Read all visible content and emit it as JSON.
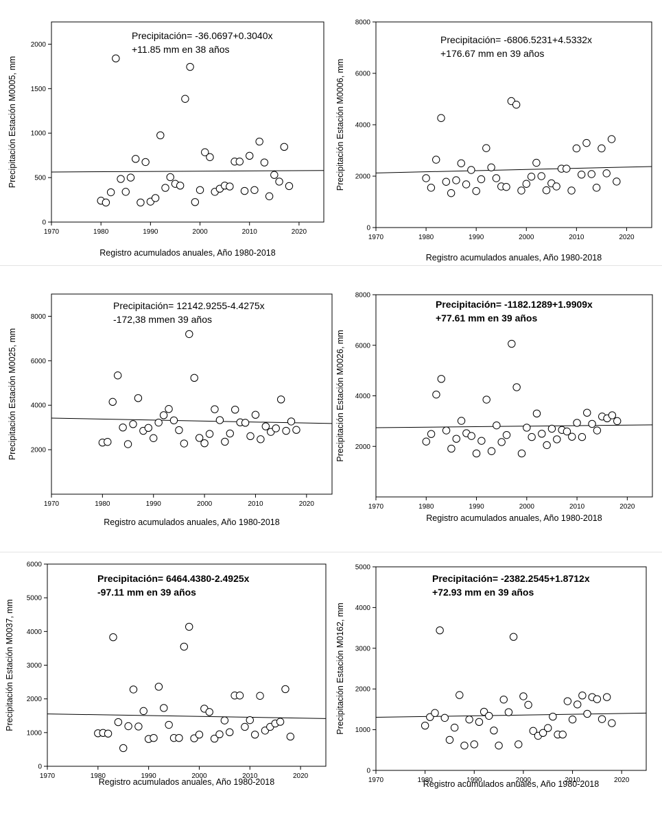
{
  "chart_data": [
    {
      "type": "scatter",
      "equation_line1": "Precipitación= -36.0697+0.3040x",
      "equation_line2": "+11.85 mm en 38 años",
      "bold": false,
      "ylabel": "Precipitación Estación M0005, mm",
      "xlabel": "Registro acumulados anuales, Año 1980-2018",
      "xlim": [
        1970,
        2025
      ],
      "ylim": [
        0,
        2250
      ],
      "xticks": [
        1970,
        1980,
        1990,
        2000,
        2010,
        2020
      ],
      "yticks": [
        0,
        500,
        1000,
        1500,
        2000
      ],
      "trend": {
        "intercept": -36.0697,
        "slope": 0.304
      },
      "x": [
        1980,
        1981,
        1982,
        1983,
        1984,
        1985,
        1986,
        1987,
        1988,
        1989,
        1990,
        1991,
        1992,
        1993,
        1994,
        1995,
        1996,
        1997,
        1998,
        1999,
        2000,
        2001,
        2002,
        2003,
        2004,
        2005,
        2006,
        2007,
        2008,
        2009,
        2010,
        2011,
        2012,
        2013,
        2014,
        2015,
        2016,
        2017,
        2018
      ],
      "y": [
        240,
        220,
        335,
        1840,
        485,
        340,
        500,
        710,
        220,
        675,
        230,
        270,
        975,
        385,
        505,
        430,
        410,
        1385,
        1745,
        225,
        360,
        785,
        730,
        340,
        375,
        410,
        400,
        680,
        680,
        350,
        745,
        360,
        905,
        670,
        290,
        530,
        455,
        845,
        405
      ]
    },
    {
      "type": "scatter",
      "equation_line1": "Precipitación= -6806.5231+4.5332x",
      "equation_line2": "+176.67 mm en 39 años",
      "bold": false,
      "ylabel": "Precipitación Estación M0006, mm",
      "xlabel": "Registro acumulados anuales, Año 1980-2018",
      "xlim": [
        1970,
        2025
      ],
      "ylim": [
        0,
        8000
      ],
      "xticks": [
        1970,
        1980,
        1990,
        2000,
        2010,
        2020
      ],
      "yticks": [
        0,
        2000,
        4000,
        6000,
        8000
      ],
      "trend": {
        "intercept": -6806.5231,
        "slope": 4.5332
      },
      "x": [
        1980,
        1981,
        1982,
        1983,
        1984,
        1985,
        1986,
        1987,
        1988,
        1989,
        1990,
        1991,
        1992,
        1993,
        1994,
        1995,
        1996,
        1997,
        1998,
        1999,
        2000,
        2001,
        2002,
        2003,
        2004,
        2005,
        2006,
        2007,
        2008,
        2009,
        2010,
        2011,
        2012,
        2013,
        2014,
        2015,
        2016,
        2017,
        2018
      ],
      "y": [
        1920,
        1550,
        2640,
        4260,
        1780,
        1340,
        1840,
        2500,
        1680,
        2240,
        1420,
        1880,
        3090,
        2340,
        1920,
        1600,
        1580,
        4920,
        4780,
        1440,
        1700,
        1980,
        2520,
        2000,
        1450,
        1720,
        1600,
        2290,
        2290,
        1440,
        3080,
        2060,
        3290,
        2080,
        1550,
        3080,
        2110,
        3440,
        1790
      ]
    },
    {
      "type": "scatter",
      "equation_line1": "Precipitación= 12142.9255-4.4275x",
      "equation_line2": "-172,38 mmen 39 años",
      "bold": false,
      "ylabel": "Precipitación Estación M0025, mm",
      "xlabel": "Registro acumulados anuales, Año 1980-2018",
      "xlim": [
        1970,
        2025
      ],
      "ylim": [
        0,
        9000
      ],
      "xticks": [
        1970,
        1980,
        1990,
        2000,
        2010,
        2020
      ],
      "yticks": [
        2000,
        4000,
        6000,
        8000
      ],
      "trend": {
        "intercept": 12142.9255,
        "slope": -4.4275
      },
      "x": [
        1980,
        1981,
        1982,
        1983,
        1984,
        1985,
        1986,
        1987,
        1988,
        1989,
        1990,
        1991,
        1992,
        1993,
        1994,
        1995,
        1996,
        1997,
        1998,
        1999,
        2000,
        2001,
        2002,
        2003,
        2004,
        2005,
        2006,
        2007,
        2008,
        2009,
        2010,
        2011,
        2012,
        2013,
        2014,
        2015,
        2016,
        2017,
        2018
      ],
      "y": [
        2320,
        2350,
        4150,
        5340,
        3000,
        2250,
        3150,
        4320,
        2850,
        2980,
        2520,
        3220,
        3550,
        3830,
        3320,
        2880,
        2280,
        7200,
        5230,
        2530,
        2290,
        2710,
        3820,
        3330,
        2360,
        2730,
        3800,
        3230,
        3210,
        2610,
        3570,
        2470,
        3050,
        2800,
        2960,
        4260,
        2850,
        3270,
        2890
      ]
    },
    {
      "type": "scatter",
      "equation_line1": "Precipitación= -1182.1289+1.9909x",
      "equation_line2": "+77.61 mm en 39 años",
      "bold": true,
      "ylabel": "Precipitación Estación M0026, mm",
      "xlabel": "Registro acumulados anuales, Año 1980-2018",
      "xlim": [
        1970,
        2025
      ],
      "ylim": [
        0,
        8000
      ],
      "xticks": [
        1970,
        1980,
        1990,
        2000,
        2010,
        2020
      ],
      "yticks": [
        2000,
        4000,
        6000,
        8000
      ],
      "trend": {
        "intercept": -1182.1289,
        "slope": 1.9909
      },
      "x": [
        1980,
        1981,
        1982,
        1983,
        1984,
        1985,
        1986,
        1987,
        1988,
        1989,
        1990,
        1991,
        1992,
        1993,
        1994,
        1995,
        1996,
        1997,
        1998,
        1999,
        2000,
        2001,
        2002,
        2003,
        2004,
        2005,
        2006,
        2007,
        2008,
        2009,
        2010,
        2011,
        2012,
        2013,
        2014,
        2015,
        2016,
        2017,
        2018
      ],
      "y": [
        2190,
        2490,
        4050,
        4670,
        2630,
        1910,
        2300,
        3010,
        2520,
        2410,
        1720,
        2220,
        3850,
        1810,
        2830,
        2170,
        2450,
        6060,
        4340,
        1720,
        2740,
        2370,
        3300,
        2500,
        2050,
        2700,
        2280,
        2650,
        2590,
        2380,
        2930,
        2370,
        3330,
        2890,
        2630,
        3180,
        3110,
        3230,
        3000
      ]
    },
    {
      "type": "scatter",
      "equation_line1": "Precipitación= 6464.4380-2.4925x",
      "equation_line2": "-97.11 mm en 39 años",
      "bold": true,
      "ylabel": "Precipitación Estación M0037, mm",
      "xlabel": "Registro acumulados anuales, Año 1980-2018",
      "xlim": [
        1970,
        2025
      ],
      "ylim": [
        0,
        6000
      ],
      "xticks": [
        1970,
        1980,
        1990,
        2000,
        2010,
        2020
      ],
      "yticks": [
        0,
        1000,
        2000,
        3000,
        4000,
        5000,
        6000
      ],
      "trend": {
        "intercept": 6464.438,
        "slope": -2.4925
      },
      "x": [
        1980,
        1981,
        1982,
        1983,
        1984,
        1985,
        1986,
        1987,
        1988,
        1989,
        1990,
        1991,
        1992,
        1993,
        1994,
        1995,
        1996,
        1997,
        1998,
        1999,
        2000,
        2001,
        2002,
        2003,
        2004,
        2005,
        2006,
        2007,
        2008,
        2009,
        2010,
        2011,
        2012,
        2013,
        2014,
        2015,
        2016,
        2017,
        2018
      ],
      "y": [
        980,
        990,
        970,
        3830,
        1310,
        540,
        1190,
        2280,
        1180,
        1640,
        810,
        840,
        2360,
        1730,
        1230,
        840,
        840,
        3550,
        4140,
        830,
        940,
        1710,
        1610,
        820,
        950,
        1360,
        1010,
        2100,
        2100,
        1170,
        1370,
        940,
        2090,
        1060,
        1170,
        1270,
        1320,
        2290,
        880
      ]
    },
    {
      "type": "scatter",
      "equation_line1": "Precipitación= -2382.2545+1.8712x",
      "equation_line2": "+72.93 mm en 39 años",
      "bold": true,
      "ylabel": "Precipitación Estación M0162, mm",
      "xlabel": "Registro acumulados anuales, Año 1980-2018",
      "xlim": [
        1970,
        2025
      ],
      "ylim": [
        0,
        5000
      ],
      "xticks": [
        1970,
        1980,
        1990,
        2000,
        2010,
        2020
      ],
      "yticks": [
        0,
        1000,
        2000,
        3000,
        4000,
        5000
      ],
      "trend": {
        "intercept": -2382.2545,
        "slope": 1.8712
      },
      "x": [
        1980,
        1981,
        1982,
        1983,
        1984,
        1985,
        1986,
        1987,
        1988,
        1989,
        1990,
        1991,
        1992,
        1993,
        1994,
        1995,
        1996,
        1997,
        1998,
        1999,
        2000,
        2001,
        2002,
        2003,
        2004,
        2005,
        2006,
        2007,
        2008,
        2009,
        2010,
        2011,
        2012,
        2013,
        2014,
        2015,
        2016,
        2017,
        2018
      ],
      "y": [
        1100,
        1310,
        1410,
        3440,
        1290,
        750,
        1050,
        1850,
        610,
        1250,
        640,
        1190,
        1440,
        1340,
        980,
        610,
        1740,
        1430,
        3280,
        640,
        1820,
        1610,
        970,
        850,
        920,
        1040,
        1320,
        880,
        880,
        1700,
        1250,
        1620,
        1840,
        1390,
        1800,
        1750,
        1260,
        1800,
        1160
      ]
    }
  ]
}
